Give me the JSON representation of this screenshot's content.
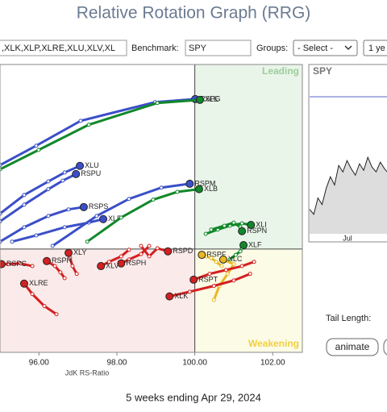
{
  "title": "Relative Rotation Graph (RRG)",
  "toolbar": {
    "symbols": ",XLK,XLP,XLRE,XLU,XLV,XL",
    "benchmark_label": "Benchmark:",
    "benchmark": "SPY",
    "groups_label": "Groups:",
    "groups": "- Select -",
    "period": "1 ye"
  },
  "chart_data": {
    "type": "rrg",
    "xlabel": "JdK RS-Ratio",
    "xlim": [
      95,
      102.76
    ],
    "ylim": [
      97.34,
      104.75
    ],
    "center": 100,
    "xticks": [
      {
        "value": 96,
        "label": "96.00"
      },
      {
        "value": 98,
        "label": "98.00"
      },
      {
        "value": 100,
        "label": "100.00"
      },
      {
        "value": 102,
        "label": "102.00"
      }
    ],
    "quadrants": {
      "leading": "Leading",
      "weakening": "Weakening"
    },
    "series": [
      {
        "name": "RSPG",
        "color": "#3b4fc8",
        "x": [
          95.0,
          95.93,
          97.07,
          98.98,
          100.01
        ],
        "y": [
          102.16,
          102.66,
          103.3,
          103.78,
          103.86
        ]
      },
      {
        "name": "XLE",
        "color": "#11882a",
        "x": [
          95.0,
          95.99,
          97.28,
          99.04,
          100.13
        ],
        "y": [
          102.05,
          102.55,
          103.2,
          103.76,
          103.84
        ]
      },
      {
        "name": "XLU",
        "color": "#3b4fc8",
        "x": [
          95.0,
          95.62,
          96.24,
          96.66,
          97.05
        ],
        "y": [
          100.91,
          101.39,
          101.74,
          101.97,
          102.14
        ]
      },
      {
        "name": "RSPU",
        "color": "#3b4fc8",
        "x": [
          95.0,
          95.62,
          96.24,
          96.61,
          96.95
        ],
        "y": [
          100.71,
          101.14,
          101.54,
          101.76,
          101.93
        ]
      },
      {
        "name": "RSPS",
        "color": "#3b4fc8",
        "x": [
          95.0,
          95.62,
          96.24,
          96.76,
          97.15
        ],
        "y": [
          100.19,
          100.56,
          100.85,
          101.02,
          101.08
        ]
      },
      {
        "name": "XLP",
        "color": "#3b4fc8",
        "x": [
          95.31,
          95.93,
          96.66,
          97.28,
          97.65
        ],
        "y": [
          100.19,
          100.35,
          100.56,
          100.68,
          100.77
        ]
      },
      {
        "name": "RSPM",
        "color": "#3b4fc8",
        "x": [
          96.35,
          97.48,
          98.31,
          99.14,
          99.87
        ],
        "y": [
          100.08,
          100.85,
          101.29,
          101.58,
          101.68
        ]
      },
      {
        "name": "XLB",
        "color": "#11882a",
        "x": [
          97.24,
          98.11,
          98.93,
          99.55,
          100.11
        ],
        "y": [
          100.19,
          100.81,
          101.27,
          101.47,
          101.54
        ]
      },
      {
        "name": "XLI",
        "color": "#11882a",
        "x": [
          100.28,
          100.59,
          100.9,
          101.21,
          101.44
        ],
        "y": [
          100.39,
          100.5,
          100.6,
          100.66,
          100.62
        ]
      },
      {
        "name": "RSPN",
        "color": "#11882a",
        "x": [
          100.42,
          100.76,
          101.0,
          101.17,
          101.21
        ],
        "y": [
          100.5,
          100.6,
          100.68,
          100.56,
          100.46
        ]
      },
      {
        "name": "XLF",
        "color": "#11882a",
        "x": [
          100.9,
          101.05,
          101.17,
          101.21,
          101.25
        ],
        "y": [
          99.73,
          99.85,
          99.94,
          100.02,
          100.1
        ]
      },
      {
        "name": "RSPF",
        "color": "#e8b820",
        "x": [
          100.69,
          100.55,
          100.42,
          100.28,
          100.18
        ],
        "y": [
          99.56,
          99.67,
          99.77,
          99.81,
          99.85
        ]
      },
      {
        "name": "XLC",
        "color": "#e8b820",
        "x": [
          100.49,
          100.63,
          100.84,
          101.0,
          100.73
        ],
        "y": [
          98.69,
          99.05,
          99.36,
          99.61,
          99.73
        ]
      },
      {
        "name": "RSPT",
        "color": "#d42020",
        "x": [
          101.52,
          101.21,
          100.8,
          100.38,
          99.97
        ],
        "y": [
          99.67,
          99.56,
          99.46,
          99.36,
          99.21
        ]
      },
      {
        "name": "XLK",
        "color": "#d42020",
        "x": [
          101.42,
          101.0,
          100.49,
          99.87,
          99.35
        ],
        "y": [
          99.36,
          99.19,
          99.05,
          98.9,
          98.78
        ]
      },
      {
        "name": "RSPD",
        "color": "#d42020",
        "x": [
          98.62,
          98.83,
          99.04,
          99.31
        ],
        "y": [
          100.08,
          99.81,
          100.02,
          99.94
        ]
      },
      {
        "name": "RSPH",
        "color": "#d42020",
        "x": [
          98.83,
          98.62,
          98.31,
          98.11
        ],
        "y": [
          100.08,
          99.87,
          99.73,
          99.63
        ]
      },
      {
        "name": "XLV",
        "color": "#d42020",
        "x": [
          98.31,
          98.11,
          97.8,
          97.59
        ],
        "y": [
          99.98,
          99.81,
          99.67,
          99.56
        ]
      },
      {
        "name": "XLY",
        "color": "#d42020",
        "x": [
          96.97,
          96.86,
          96.8,
          96.76
        ],
        "y": [
          99.36,
          99.56,
          99.77,
          99.9
        ]
      },
      {
        "name": "RSPR",
        "color": "#d42020",
        "x": [
          96.66,
          96.55,
          96.41,
          96.2
        ],
        "y": [
          99.25,
          99.4,
          99.56,
          99.69
        ]
      },
      {
        "name": "RSPC",
        "color": "#d42020",
        "x": [
          95.83,
          95.52,
          95.21,
          95.04
        ],
        "y": [
          99.56,
          99.63,
          99.61,
          99.61
        ]
      },
      {
        "name": "XLRE",
        "color": "#d42020",
        "x": [
          96.45,
          96.14,
          95.83,
          95.62
        ],
        "y": [
          98.32,
          98.53,
          98.84,
          99.11
        ]
      }
    ]
  },
  "mini_chart": {
    "type": "area",
    "symbol": "SPY",
    "xlabel": "Jul",
    "ylim": [
      0,
      100
    ],
    "values": [
      15,
      12,
      22,
      18,
      28,
      35,
      30,
      42,
      38,
      45,
      40,
      36,
      43,
      39,
      47,
      41,
      38,
      44,
      40,
      37
    ]
  },
  "controls": {
    "tail_length": "Tail Length:",
    "animate": "animate"
  },
  "footer": "5 weeks ending Apr 29, 2024"
}
